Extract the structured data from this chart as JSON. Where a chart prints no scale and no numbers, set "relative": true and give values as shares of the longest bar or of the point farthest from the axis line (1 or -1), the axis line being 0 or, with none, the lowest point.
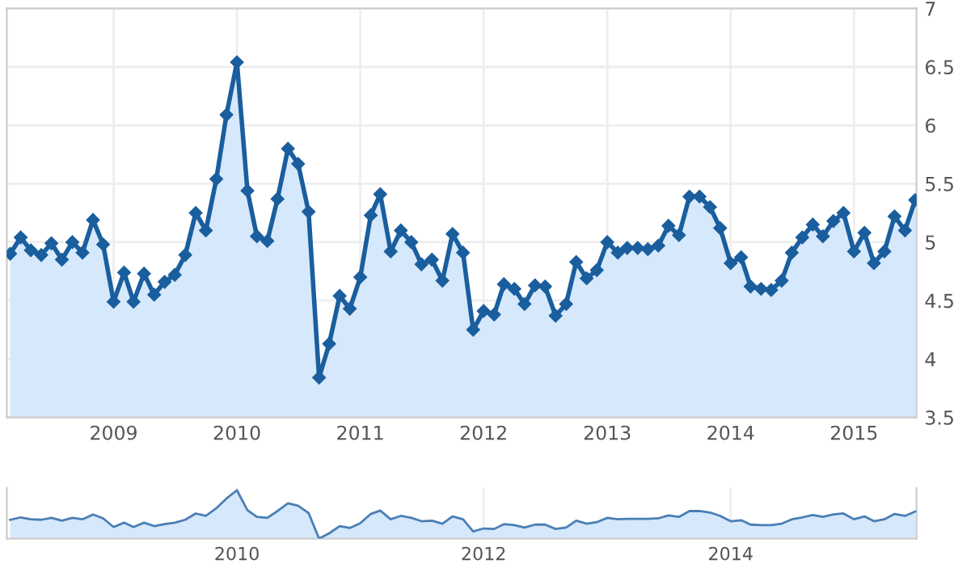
{
  "chart_data": [
    {
      "type": "area",
      "x": [
        "2008-03",
        "2008-04",
        "2008-05",
        "2008-06",
        "2008-07",
        "2008-08",
        "2008-09",
        "2008-10",
        "2008-11",
        "2008-12",
        "2009-01",
        "2009-02",
        "2009-03",
        "2009-04",
        "2009-05",
        "2009-06",
        "2009-07",
        "2009-08",
        "2009-09",
        "2009-10",
        "2009-11",
        "2009-12",
        "2010-01",
        "2010-02",
        "2010-03",
        "2010-04",
        "2010-05",
        "2010-06",
        "2010-07",
        "2010-08",
        "2010-09",
        "2010-10",
        "2010-11",
        "2010-12",
        "2011-01",
        "2011-02",
        "2011-03",
        "2011-04",
        "2011-05",
        "2011-06",
        "2011-07",
        "2011-08",
        "2011-09",
        "2011-10",
        "2011-11",
        "2011-12",
        "2012-01",
        "2012-02",
        "2012-03",
        "2012-04",
        "2012-05",
        "2012-06",
        "2012-07",
        "2012-08",
        "2012-09",
        "2012-10",
        "2012-11",
        "2012-12",
        "2013-01",
        "2013-02",
        "2013-03",
        "2013-04",
        "2013-05",
        "2013-06",
        "2013-07",
        "2013-08",
        "2013-09",
        "2013-10",
        "2013-11",
        "2013-12",
        "2014-01",
        "2014-02",
        "2014-03",
        "2014-04",
        "2014-05",
        "2014-06",
        "2014-07",
        "2014-08",
        "2014-09",
        "2014-10",
        "2014-11",
        "2014-12",
        "2015-01",
        "2015-02",
        "2015-03",
        "2015-04",
        "2015-05",
        "2015-06",
        "2015-07"
      ],
      "series": [
        {
          "color": "#1a5e9e",
          "values": [
            4.9,
            5.04,
            4.93,
            4.89,
            4.99,
            4.85,
            5.0,
            4.91,
            5.19,
            4.98,
            4.49,
            4.74,
            4.49,
            4.73,
            4.55,
            4.66,
            4.72,
            4.89,
            5.25,
            5.1,
            5.54,
            6.09,
            6.54,
            5.44,
            5.05,
            5.01,
            5.37,
            5.8,
            5.67,
            5.26,
            3.84,
            4.13,
            4.54,
            4.43,
            4.7,
            5.23,
            5.41,
            4.92,
            5.1,
            5.0,
            4.81,
            4.85,
            4.67,
            5.07,
            4.91,
            4.25,
            4.41,
            4.38,
            4.64,
            4.6,
            4.47,
            4.63,
            4.62,
            4.37,
            4.47,
            4.83,
            4.69,
            4.76,
            5.0,
            4.91,
            4.95,
            4.95,
            4.94,
            4.97,
            5.14,
            5.06,
            5.39,
            5.39,
            5.3,
            5.12,
            4.82,
            4.87,
            4.62,
            4.6,
            4.59,
            4.67,
            4.91,
            5.04,
            5.15,
            5.05,
            5.18,
            5.25,
            4.92,
            5.08,
            4.82,
            4.92,
            5.22,
            5.1,
            5.36
          ]
        }
      ],
      "xlim": [
        "2008-02-20",
        "2015-07-05"
      ],
      "xticks": [
        "2009",
        "2010",
        "2011",
        "2012",
        "2013",
        "2014",
        "2015"
      ],
      "ylim": [
        3.5,
        7
      ],
      "yticks": [
        3.5,
        4,
        4.5,
        5,
        5.5,
        6,
        6.5,
        7
      ],
      "grid": true,
      "marker": "diamond",
      "line_style": "solid"
    },
    {
      "type": "area",
      "x": [
        "2008-03",
        "2008-04",
        "2008-05",
        "2008-06",
        "2008-07",
        "2008-08",
        "2008-09",
        "2008-10",
        "2008-11",
        "2008-12",
        "2009-01",
        "2009-02",
        "2009-03",
        "2009-04",
        "2009-05",
        "2009-06",
        "2009-07",
        "2009-08",
        "2009-09",
        "2009-10",
        "2009-11",
        "2009-12",
        "2010-01",
        "2010-02",
        "2010-03",
        "2010-04",
        "2010-05",
        "2010-06",
        "2010-07",
        "2010-08",
        "2010-09",
        "2010-10",
        "2010-11",
        "2010-12",
        "2011-01",
        "2011-02",
        "2011-03",
        "2011-04",
        "2011-05",
        "2011-06",
        "2011-07",
        "2011-08",
        "2011-09",
        "2011-10",
        "2011-11",
        "2011-12",
        "2012-01",
        "2012-02",
        "2012-03",
        "2012-04",
        "2012-05",
        "2012-06",
        "2012-07",
        "2012-08",
        "2012-09",
        "2012-10",
        "2012-11",
        "2012-12",
        "2013-01",
        "2013-02",
        "2013-03",
        "2013-04",
        "2013-05",
        "2013-06",
        "2013-07",
        "2013-08",
        "2013-09",
        "2013-10",
        "2013-11",
        "2013-12",
        "2014-01",
        "2014-02",
        "2014-03",
        "2014-04",
        "2014-05",
        "2014-06",
        "2014-07",
        "2014-08",
        "2014-09",
        "2014-10",
        "2014-11",
        "2014-12",
        "2015-01",
        "2015-02",
        "2015-03",
        "2015-04",
        "2015-05",
        "2015-06",
        "2015-07"
      ],
      "series": [
        {
          "color": "#4a7fb5",
          "values": [
            0.39,
            0.44,
            0.4,
            0.39,
            0.43,
            0.37,
            0.43,
            0.4,
            0.5,
            0.42,
            0.24,
            0.33,
            0.24,
            0.33,
            0.26,
            0.3,
            0.33,
            0.39,
            0.52,
            0.47,
            0.63,
            0.83,
            1,
            0.59,
            0.45,
            0.43,
            0.57,
            0.73,
            0.68,
            0.53,
            0,
            0.11,
            0.26,
            0.22,
            0.32,
            0.51,
            0.58,
            0.4,
            0.47,
            0.43,
            0.36,
            0.37,
            0.31,
            0.46,
            0.4,
            0.15,
            0.21,
            0.2,
            0.3,
            0.28,
            0.23,
            0.29,
            0.29,
            0.2,
            0.23,
            0.37,
            0.31,
            0.34,
            0.43,
            0.4,
            0.41,
            0.41,
            0.41,
            0.42,
            0.48,
            0.45,
            0.57,
            0.57,
            0.54,
            0.47,
            0.36,
            0.38,
            0.29,
            0.28,
            0.28,
            0.31,
            0.4,
            0.44,
            0.49,
            0.45,
            0.5,
            0.52,
            0.4,
            0.46,
            0.36,
            0.4,
            0.51,
            0.47,
            0.56
          ]
        }
      ],
      "relative": true,
      "xlim": [
        "2008-02-20",
        "2015-07-05"
      ],
      "xticks": [
        "2010",
        "2012",
        "2014"
      ],
      "tick_labels": "x",
      "grid": "x"
    }
  ]
}
